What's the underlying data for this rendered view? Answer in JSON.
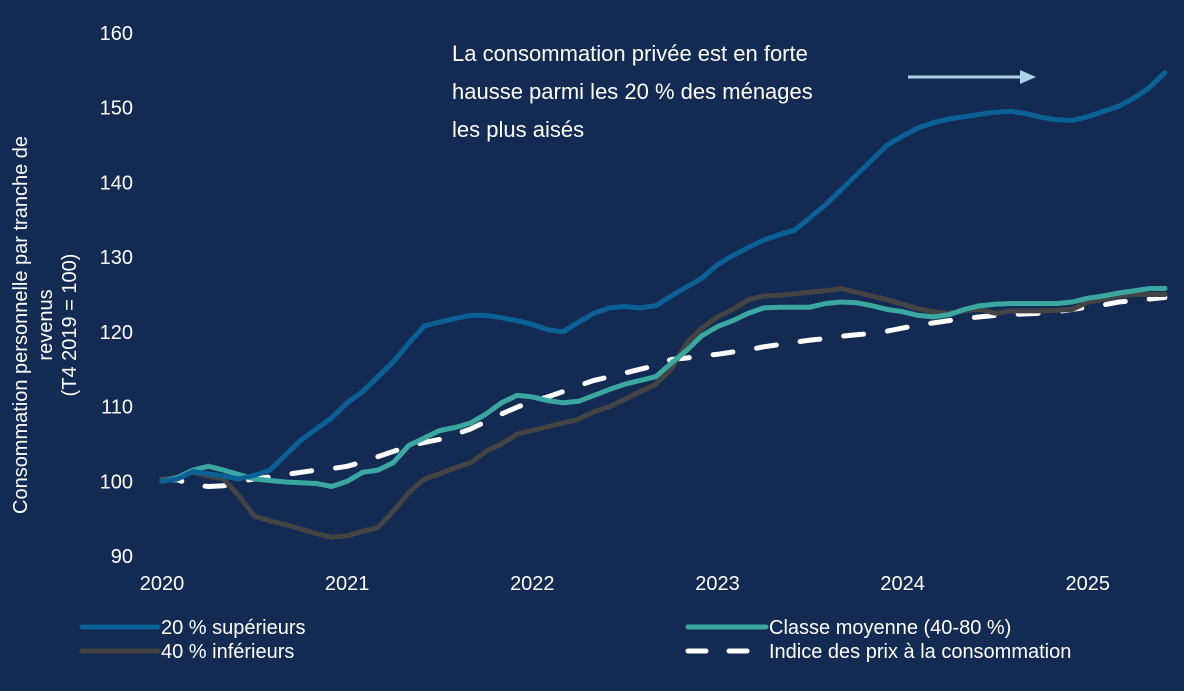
{
  "colors": {
    "background": "#132a52",
    "top20": "#0b6196",
    "middle": "#3aa8a0",
    "bottom40": "#444444",
    "cpi": "#ffffff",
    "arrow": "#a9d4ea"
  },
  "annotation": {
    "lines": [
      "La consommation privée est en forte",
      "hausse parmi les 20 % des ménages",
      "les plus aisés"
    ]
  },
  "chart_data": {
    "type": "line",
    "title": "",
    "ylabel_lines": [
      "Consommation personnelle par tranche de",
      "revenus",
      "(T4 2019 = 100)"
    ],
    "xlabel": "",
    "ylim": [
      90,
      160
    ],
    "yticks": [
      90,
      100,
      110,
      120,
      130,
      140,
      150,
      160
    ],
    "xticks": [
      "2020",
      "2021",
      "2022",
      "2023",
      "2024",
      "2025"
    ],
    "grid": false,
    "legend_placement": "bottom",
    "x": [
      "2020-01",
      "2020-02",
      "2020-03",
      "2020-04",
      "2020-05",
      "2020-06",
      "2020-07",
      "2020-08",
      "2020-09",
      "2020-10",
      "2020-11",
      "2020-12",
      "2021-01",
      "2021-02",
      "2021-03",
      "2021-04",
      "2021-05",
      "2021-06",
      "2021-07",
      "2021-08",
      "2021-09",
      "2021-10",
      "2021-11",
      "2021-12",
      "2022-01",
      "2022-02",
      "2022-03",
      "2022-04",
      "2022-05",
      "2022-06",
      "2022-07",
      "2022-08",
      "2022-09",
      "2022-10",
      "2022-11",
      "2022-12",
      "2023-01",
      "2023-02",
      "2023-03",
      "2023-04",
      "2023-05",
      "2023-06",
      "2023-07",
      "2023-08",
      "2023-09",
      "2023-10",
      "2023-11",
      "2023-12",
      "2024-01",
      "2024-02",
      "2024-03",
      "2024-04",
      "2024-05",
      "2024-06",
      "2024-07",
      "2024-08",
      "2024-09",
      "2024-10",
      "2024-11",
      "2024-12",
      "2025-01",
      "2025-02",
      "2025-03",
      "2025-04",
      "2025-05",
      "2025-06"
    ],
    "series": [
      {
        "name": "20 % supérieurs",
        "color": "#0b6196",
        "style": "solid",
        "values": [
          100,
          100.3,
          101.3,
          101,
          100.7,
          100.3,
          100.8,
          101.5,
          103.5,
          105.5,
          107,
          108.5,
          110.5,
          112,
          114,
          116,
          118.5,
          120.8,
          121.3,
          121.8,
          122.2,
          122.2,
          121.9,
          121.5,
          121,
          120.3,
          120,
          121.3,
          122.5,
          123.2,
          123.4,
          123.2,
          123.5,
          124.8,
          126,
          127.2,
          129,
          130.2,
          131.3,
          132.3,
          133,
          133.6,
          135.3,
          137,
          139,
          141,
          143,
          145,
          146.2,
          147.3,
          148,
          148.5,
          148.8,
          149.1,
          149.4,
          149.5,
          149.2,
          148.7,
          148.4,
          148.3,
          148.8,
          149.5,
          150.2,
          151.3,
          152.7,
          154.7
        ]
      },
      {
        "name": "40 % inférieurs",
        "color": "#444444",
        "style": "solid",
        "values": [
          100.2,
          100.5,
          101.2,
          100.7,
          100.3,
          98,
          95.3,
          94.7,
          94.2,
          93.6,
          93,
          92.5,
          92.7,
          93.3,
          93.8,
          96,
          98.5,
          100.3,
          101,
          101.8,
          102.5,
          104,
          105,
          106.3,
          106.8,
          107.3,
          107.8,
          108.3,
          109.3,
          110,
          111,
          112,
          113,
          115,
          118.5,
          120.5,
          122,
          123,
          124.3,
          124.8,
          124.9,
          125.1,
          125.3,
          125.5,
          125.8,
          125.3,
          124.8,
          124.3,
          123.7,
          123.1,
          122.7,
          122.5,
          122.8,
          123,
          122.5,
          122.8,
          122.8,
          122.8,
          122.9,
          123,
          124,
          124.3,
          124.8,
          125,
          125,
          125
        ]
      },
      {
        "name": "Classe moyenne (40-80 %)",
        "color": "#3aa8a0",
        "style": "solid",
        "values": [
          100,
          100.5,
          101.5,
          102,
          101.5,
          100.9,
          100.3,
          100.1,
          99.9,
          99.8,
          99.7,
          99.3,
          100,
          101.2,
          101.5,
          102.5,
          104.8,
          105.8,
          106.8,
          107.2,
          107.8,
          109,
          110.5,
          111.5,
          111.3,
          110.8,
          110.5,
          110.7,
          111.5,
          112.3,
          113,
          113.5,
          114,
          115.8,
          117.5,
          119.5,
          120.7,
          121.5,
          122.5,
          123.2,
          123.3,
          123.3,
          123.3,
          123.8,
          124,
          123.9,
          123.5,
          123,
          122.7,
          122.2,
          122,
          122.3,
          123,
          123.5,
          123.7,
          123.8,
          123.8,
          123.8,
          123.8,
          124,
          124.5,
          124.8,
          125.2,
          125.5,
          125.8,
          125.8
        ]
      },
      {
        "name": "Indice des prix à la consommation",
        "color": "#ffffff",
        "style": "dashed",
        "values": [
          100.2,
          100.2,
          99.5,
          99.3,
          99.4,
          100,
          100.3,
          100.6,
          100.9,
          101.2,
          101.5,
          101.7,
          102,
          102.6,
          103.3,
          104,
          104.7,
          105.2,
          105.6,
          106.3,
          107,
          108,
          109,
          109.9,
          110.7,
          111.3,
          112,
          112.8,
          113.5,
          114,
          114.5,
          115,
          115.5,
          116.3,
          116.5,
          116.8,
          117,
          117.3,
          117.6,
          118,
          118.3,
          118.6,
          118.9,
          119.1,
          119.4,
          119.6,
          119.8,
          120.1,
          120.5,
          120.9,
          121.2,
          121.5,
          121.8,
          122,
          122.2,
          122.3,
          122.4,
          122.5,
          122.7,
          123,
          123.3,
          123.6,
          124,
          124.2,
          124.4,
          124.6
        ]
      }
    ]
  }
}
